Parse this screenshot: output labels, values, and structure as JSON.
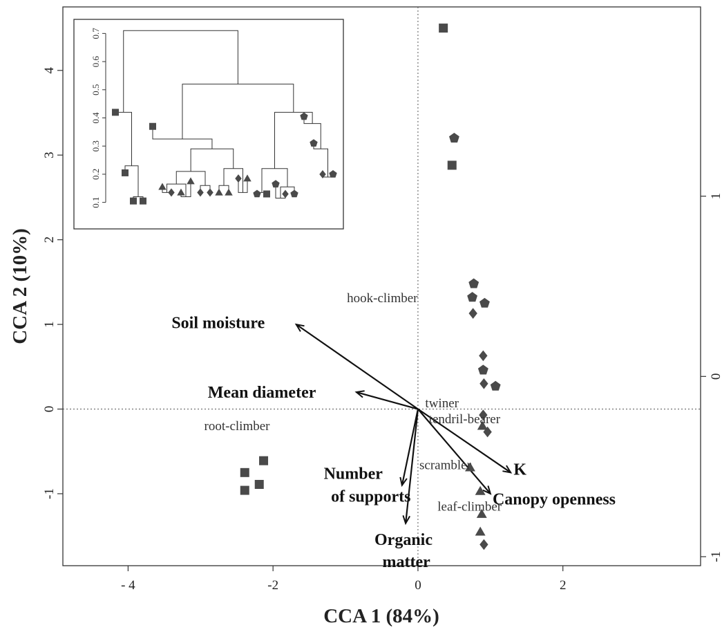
{
  "chart_data": {
    "type": "scatter",
    "title": "",
    "xlabel": "CCA 1 (84%)",
    "ylabel": "CCA 2 (10%)",
    "xlim": [
      -4.9,
      3.9
    ],
    "ylim": [
      -1.85,
      4.75
    ],
    "y2lim": [
      -1.05,
      2.05
    ],
    "grid": false,
    "x_ticks": [
      {
        "v": -4,
        "label": "- 4"
      },
      {
        "v": -2,
        "label": "-2"
      },
      {
        "v": 0,
        "label": "0"
      },
      {
        "v": 2,
        "label": "2"
      }
    ],
    "y_ticks": [
      {
        "v": -1,
        "label": "-1"
      },
      {
        "v": 0,
        "label": "0"
      },
      {
        "v": 1,
        "label": "1"
      },
      {
        "v": 2,
        "label": "2"
      },
      {
        "v": 3,
        "label": "3"
      },
      {
        "v": 4,
        "label": "4"
      }
    ],
    "y2_ticks": [
      {
        "v": -1,
        "label": "-1"
      },
      {
        "v": 0,
        "label": "0"
      },
      {
        "v": 1,
        "label": "1"
      }
    ],
    "points": [
      {
        "x": 0.35,
        "y": 4.5,
        "shape": "square"
      },
      {
        "x": 0.5,
        "y": 3.2,
        "shape": "pentagon"
      },
      {
        "x": 0.47,
        "y": 2.88,
        "shape": "square"
      },
      {
        "x": 0.77,
        "y": 1.48,
        "shape": "pentagon"
      },
      {
        "x": 0.75,
        "y": 1.32,
        "shape": "pentagon"
      },
      {
        "x": 0.92,
        "y": 1.25,
        "shape": "pentagon"
      },
      {
        "x": 0.76,
        "y": 1.13,
        "shape": "diamond"
      },
      {
        "x": 0.9,
        "y": 0.63,
        "shape": "diamond"
      },
      {
        "x": 0.9,
        "y": 0.46,
        "shape": "pentagon"
      },
      {
        "x": 0.91,
        "y": 0.3,
        "shape": "diamond"
      },
      {
        "x": 1.07,
        "y": 0.27,
        "shape": "pentagon"
      },
      {
        "x": 0.9,
        "y": -0.07,
        "shape": "diamond"
      },
      {
        "x": 0.89,
        "y": -0.2,
        "shape": "triangle"
      },
      {
        "x": 0.96,
        "y": -0.27,
        "shape": "diamond"
      },
      {
        "x": 0.72,
        "y": -0.69,
        "shape": "triangle"
      },
      {
        "x": 0.86,
        "y": -0.97,
        "shape": "triangle"
      },
      {
        "x": 0.88,
        "y": -1.24,
        "shape": "triangle"
      },
      {
        "x": 0.86,
        "y": -1.45,
        "shape": "triangle"
      },
      {
        "x": 0.91,
        "y": -1.6,
        "shape": "diamond"
      },
      {
        "x": -2.13,
        "y": -0.61,
        "shape": "square"
      },
      {
        "x": -2.39,
        "y": -0.75,
        "shape": "square"
      },
      {
        "x": -2.19,
        "y": -0.89,
        "shape": "square"
      },
      {
        "x": -2.39,
        "y": -0.96,
        "shape": "square"
      }
    ],
    "vectors": [
      {
        "label": "Soil moisture",
        "x": -1.68,
        "y": 1.0,
        "label_x": -3.4,
        "label_y": 1.02
      },
      {
        "label": "Mean diameter",
        "x": -0.85,
        "y": 0.2,
        "label_x": -2.9,
        "label_y": 0.2
      },
      {
        "label": "K",
        "x": 1.28,
        "y": -0.75,
        "label_x": 1.32,
        "label_y": -0.71
      },
      {
        "label": "Canopy openness",
        "x": 1.0,
        "y": -1.0,
        "label_x": 1.03,
        "label_y": -1.06
      },
      {
        "label": "Number",
        "x": -0.22,
        "y": -0.9,
        "label_x": -1.3,
        "label_y": -0.76
      },
      {
        "label": "of supports",
        "x": -0.22,
        "y": -0.9,
        "label_x": -1.2,
        "label_y": -1.03
      },
      {
        "label": "Organic",
        "x": -0.17,
        "y": -1.35,
        "label_x": -0.6,
        "label_y": -1.54
      },
      {
        "label": "matter",
        "x": -0.17,
        "y": -1.35,
        "label_x": -0.49,
        "label_y": -1.8
      }
    ],
    "group_labels": [
      {
        "label": "hook-climber",
        "x": -0.98,
        "y": 1.31
      },
      {
        "label": "twiner",
        "x": 0.1,
        "y": 0.07
      },
      {
        "label": "tendril-bearer",
        "x": 0.15,
        "y": -0.12
      },
      {
        "label": "root-climber",
        "x": -2.95,
        "y": -0.2
      },
      {
        "label": "scrambler",
        "x": 0.02,
        "y": -0.66
      },
      {
        "label": "leaf-climber",
        "x": 0.27,
        "y": -1.15
      }
    ],
    "inset": {
      "type": "dendrogram",
      "ylim": [
        0.05,
        0.75
      ],
      "y_ticks": [
        {
          "v": 0.1,
          "label": "0.1"
        },
        {
          "v": 0.2,
          "label": "0.2"
        },
        {
          "v": 0.3,
          "label": "0.3"
        },
        {
          "v": 0.4,
          "label": "0.4"
        },
        {
          "v": 0.5,
          "label": "0.5"
        },
        {
          "v": 0.6,
          "label": "0.6"
        },
        {
          "v": 0.7,
          "label": "0.7"
        }
      ],
      "leaves": [
        "square",
        "square",
        "square",
        "square",
        "square",
        "triangle",
        "diamond",
        "triangle",
        "triangle",
        "diamond",
        "diamond",
        "triangle",
        "triangle",
        "diamond",
        "triangle",
        "pentagon",
        "square",
        "pentagon",
        "diamond",
        "pentagon",
        "pentagon",
        "pentagon",
        "diamond",
        "pentagon"
      ],
      "leaf_heights": [
        0.355,
        0.14,
        0.04,
        0.04,
        0.305,
        0.09,
        0.07,
        0.07,
        0.11,
        0.07,
        0.07,
        0.07,
        0.07,
        0.12,
        0.12,
        0.065,
        0.065,
        0.1,
        0.065,
        0.065,
        0.34,
        0.245,
        0.135,
        0.135
      ]
    }
  }
}
